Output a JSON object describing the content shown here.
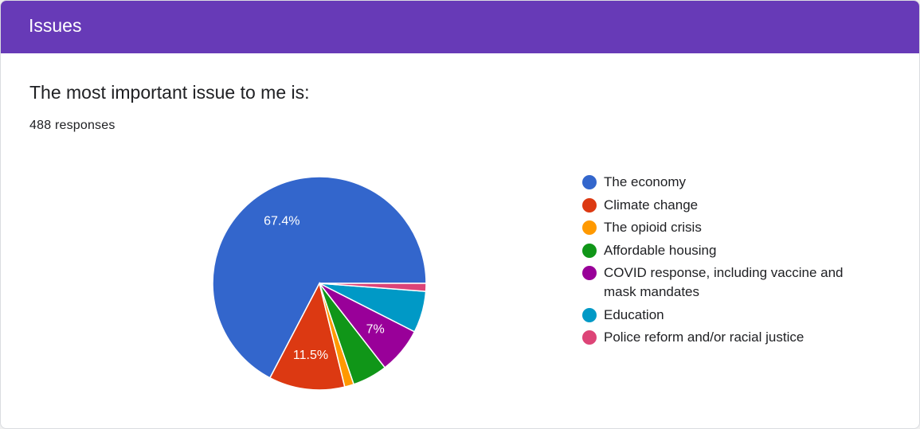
{
  "header": {
    "title": "Issues"
  },
  "question": {
    "title": "The most important issue to me is:",
    "responses": "488 responses"
  },
  "chart_data": {
    "type": "pie",
    "categories": [
      "The economy",
      "Climate change",
      "The opioid crisis",
      "Affordable housing",
      "COVID response, including vaccine and mask mandates",
      "Education",
      "Police reform and/or racial justice"
    ],
    "values": [
      67.4,
      11.5,
      1.4,
      5.3,
      7.0,
      6.3,
      1.2
    ],
    "value_unit": "percent",
    "slice_labels": [
      "67.4%",
      "11.5%",
      "",
      "",
      "7%",
      "",
      ""
    ],
    "colors": [
      "#3366cc",
      "#dc3912",
      "#ff9900",
      "#109618",
      "#990099",
      "#0099c6",
      "#dd4477"
    ],
    "legend_position": "right",
    "start_angle": "3 o'clock, counterclockwise"
  }
}
